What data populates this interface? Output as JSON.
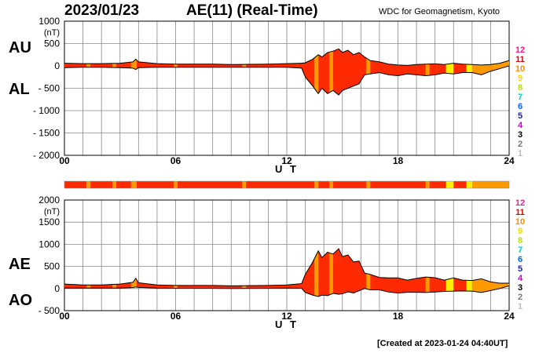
{
  "header": {
    "date": "2023/01/23",
    "title": "AE(11) (Real-Time)",
    "source": "WDC for Geomagnetism, Kyoto"
  },
  "footer": {
    "created": "[Created at 2023-01-24 04:40UT]"
  },
  "legend": {
    "levels": [
      {
        "label": "12",
        "color": "#ff1493"
      },
      {
        "label": "11",
        "color": "#e00000"
      },
      {
        "label": "10",
        "color": "#ff8c00"
      },
      {
        "label": "9",
        "color": "#ffd700"
      },
      {
        "label": "8",
        "color": "#b8e000"
      },
      {
        "label": "7",
        "color": "#00cccc"
      },
      {
        "label": "6",
        "color": "#0066ff"
      },
      {
        "label": "5",
        "color": "#2020a0"
      },
      {
        "label": "4",
        "color": "#cc00cc"
      },
      {
        "label": "3",
        "color": "#000000"
      },
      {
        "label": "2",
        "color": "#777777"
      },
      {
        "label": "1",
        "color": "#bbbbbb"
      }
    ]
  },
  "colors": {
    "red": "#ff2a00",
    "orange": "#ff9900",
    "yellow": "#ffee00",
    "grid": "#888888"
  },
  "chart_data": [
    {
      "type": "area",
      "series": [
        {
          "name": "AU"
        },
        {
          "name": "AL"
        }
      ],
      "ylabel": "(nT)",
      "ylim": [
        -2000,
        1000
      ],
      "yticks": [
        1000,
        500,
        0,
        -500,
        -1000,
        -1500,
        -2000
      ],
      "xlim": [
        0,
        24
      ],
      "xticks": [
        {
          "value": 0,
          "label": "00"
        },
        {
          "value": 6,
          "label": "06"
        },
        {
          "value": 12,
          "label": "12"
        },
        {
          "value": 18,
          "label": "18"
        },
        {
          "value": 24,
          "label": "24"
        }
      ],
      "xlabel": "U T",
      "grid": true,
      "x": [
        0,
        1,
        2,
        3,
        3.7,
        3.85,
        4,
        5,
        6,
        7,
        8,
        9,
        10,
        11,
        12,
        12.8,
        13,
        13.4,
        13.7,
        13.9,
        14.2,
        14.5,
        14.8,
        15,
        15.3,
        15.6,
        15.9,
        16.2,
        16.5,
        17,
        17.5,
        18,
        18.5,
        19,
        19.5,
        20,
        20.5,
        21,
        21.5,
        22,
        22.5,
        23,
        23.5,
        24
      ],
      "au": [
        60,
        50,
        50,
        60,
        90,
        150,
        90,
        50,
        40,
        40,
        40,
        30,
        35,
        40,
        50,
        60,
        70,
        150,
        250,
        200,
        300,
        330,
        380,
        300,
        350,
        250,
        300,
        200,
        120,
        90,
        40,
        20,
        10,
        30,
        40,
        45,
        30,
        60,
        40,
        30,
        20,
        30,
        60,
        120
      ],
      "al": [
        -40,
        -30,
        -30,
        -40,
        -50,
        -80,
        -40,
        -30,
        -30,
        -30,
        -30,
        -30,
        -30,
        -30,
        -30,
        -50,
        -250,
        -450,
        -620,
        -500,
        -620,
        -550,
        -650,
        -550,
        -500,
        -450,
        -400,
        -200,
        -180,
        -150,
        -200,
        -220,
        -180,
        -200,
        -220,
        -200,
        -160,
        -180,
        -150,
        -150,
        -200,
        -120,
        -60,
        0
      ]
    },
    {
      "type": "area",
      "series": [
        {
          "name": "AE"
        },
        {
          "name": "AO"
        }
      ],
      "ylabel": "(nT)",
      "ylim": [
        -500,
        2000
      ],
      "yticks": [
        2000,
        1500,
        1000,
        500,
        0,
        -500
      ],
      "xlim": [
        0,
        24
      ],
      "xticks": [
        {
          "value": 0,
          "label": "00"
        },
        {
          "value": 6,
          "label": "06"
        },
        {
          "value": 12,
          "label": "12"
        },
        {
          "value": 18,
          "label": "18"
        },
        {
          "value": 24,
          "label": "24"
        }
      ],
      "xlabel": "U T",
      "grid": true,
      "x": [
        0,
        1,
        2,
        3,
        3.7,
        3.85,
        4,
        5,
        6,
        7,
        8,
        9,
        10,
        11,
        12,
        12.8,
        13,
        13.4,
        13.7,
        13.9,
        14.2,
        14.5,
        14.8,
        15,
        15.3,
        15.6,
        15.9,
        16.2,
        16.5,
        17,
        17.5,
        18,
        18.5,
        19,
        19.5,
        20,
        20.5,
        21,
        21.5,
        22,
        22.5,
        23,
        23.5,
        24
      ],
      "ae": [
        100,
        80,
        80,
        100,
        140,
        230,
        130,
        80,
        70,
        70,
        70,
        60,
        65,
        70,
        80,
        110,
        320,
        600,
        850,
        700,
        820,
        780,
        900,
        720,
        760,
        600,
        620,
        350,
        320,
        250,
        240,
        240,
        190,
        230,
        260,
        245,
        190,
        240,
        190,
        180,
        220,
        150,
        120,
        120
      ],
      "ao": [
        10,
        10,
        10,
        10,
        20,
        35,
        25,
        10,
        5,
        5,
        5,
        0,
        2,
        5,
        10,
        5,
        -90,
        -150,
        -180,
        -150,
        -160,
        -110,
        -130,
        -120,
        -75,
        -100,
        -50,
        0,
        -30,
        -30,
        -80,
        -100,
        -85,
        -85,
        -90,
        -78,
        -65,
        -60,
        -55,
        -60,
        -90,
        -45,
        0,
        60
      ]
    }
  ],
  "indicator_bar": {
    "segments": [
      {
        "from": 0,
        "to": 1.2,
        "level": "red"
      },
      {
        "from": 1.2,
        "to": 1.4,
        "level": "orange"
      },
      {
        "from": 1.4,
        "to": 2.6,
        "level": "red"
      },
      {
        "from": 2.6,
        "to": 2.8,
        "level": "orange"
      },
      {
        "from": 2.8,
        "to": 3.6,
        "level": "red"
      },
      {
        "from": 3.6,
        "to": 3.9,
        "level": "orange"
      },
      {
        "from": 3.9,
        "to": 5.9,
        "level": "red"
      },
      {
        "from": 5.9,
        "to": 6.1,
        "level": "orange"
      },
      {
        "from": 6.1,
        "to": 9.6,
        "level": "red"
      },
      {
        "from": 9.6,
        "to": 9.8,
        "level": "orange"
      },
      {
        "from": 9.8,
        "to": 13.5,
        "level": "red"
      },
      {
        "from": 13.5,
        "to": 13.7,
        "level": "orange"
      },
      {
        "from": 13.7,
        "to": 14.3,
        "level": "red"
      },
      {
        "from": 14.3,
        "to": 14.5,
        "level": "orange"
      },
      {
        "from": 14.5,
        "to": 16.3,
        "level": "red"
      },
      {
        "from": 16.3,
        "to": 16.5,
        "level": "orange"
      },
      {
        "from": 16.5,
        "to": 19.5,
        "level": "red"
      },
      {
        "from": 19.5,
        "to": 19.7,
        "level": "orange"
      },
      {
        "from": 19.7,
        "to": 20.6,
        "level": "red"
      },
      {
        "from": 20.6,
        "to": 21.0,
        "level": "yellow"
      },
      {
        "from": 21.0,
        "to": 21.7,
        "level": "red"
      },
      {
        "from": 21.7,
        "to": 22.0,
        "level": "yellow"
      },
      {
        "from": 22.0,
        "to": 24,
        "level": "orange"
      }
    ]
  }
}
